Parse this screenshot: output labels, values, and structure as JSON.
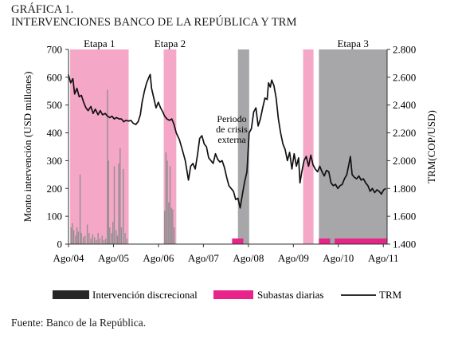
{
  "header": {
    "figure_number": "GRÁFICA 1.",
    "title": "INTERVENCIONES BANCO DE LA REPÚBLICA Y TRM"
  },
  "footer": {
    "source": "Fuente:  Banco de la República."
  },
  "colors": {
    "pink": "#f4a7c6",
    "magenta": "#e8238a",
    "gray": "#a7a7a9",
    "line": "#111111",
    "bars": "#8d8d8d"
  },
  "chart_data": {
    "type": "line",
    "title": "INTERVENCIONES BANCO DE LA REPÚBLICA Y TRM",
    "ylabel": "Monto intervención (USD millones)",
    "y2label": "TRM(COP/USD)",
    "ylim": [
      0,
      700
    ],
    "y2lim": [
      1400,
      2800
    ],
    "yticks": [
      0,
      100,
      200,
      300,
      400,
      500,
      600,
      700
    ],
    "y2ticks": [
      "1.400",
      "1.600",
      "1.800",
      "2.000",
      "2.200",
      "2.400",
      "2.600",
      "2.800"
    ],
    "xlim": [
      2004.583,
      2011.667
    ],
    "xticks": [
      {
        "label": "Ago/04",
        "x": 2004.583
      },
      {
        "label": "Ago/05",
        "x": 2005.583
      },
      {
        "label": "Ago/06",
        "x": 2006.583
      },
      {
        "label": "Ago/07",
        "x": 2007.583
      },
      {
        "label": "Ago/08",
        "x": 2008.583
      },
      {
        "label": "Ago/09",
        "x": 2009.583
      },
      {
        "label": "Ago/10",
        "x": 2010.583
      },
      {
        "label": "Ago/11",
        "x": 2011.583
      }
    ],
    "shaded_periods": [
      {
        "label": "Etapa 1",
        "start": 2004.62,
        "end": 2005.92,
        "type": "pink"
      },
      {
        "label": "Etapa 2",
        "start": 2006.7,
        "end": 2006.98,
        "type": "pink"
      },
      {
        "label": "",
        "start": 2008.35,
        "end": 2008.6,
        "type": "gray"
      },
      {
        "label": "",
        "start": 2009.8,
        "end": 2010.03,
        "type": "pink"
      },
      {
        "label": "Etapa 3",
        "start": 2010.15,
        "end": 2011.667,
        "type": "gray"
      }
    ],
    "annotation": "Periodo\nde crisis\nexterna",
    "daily_auctions": [
      {
        "start": 2008.22,
        "end": 2008.47,
        "value": 20
      },
      {
        "start": 2010.15,
        "end": 2010.4,
        "value": 20
      },
      {
        "start": 2010.5,
        "end": 2011.67,
        "value": 20
      }
    ],
    "discretionary": [
      {
        "x": 2004.64,
        "value": 60
      },
      {
        "x": 2004.67,
        "value": 75
      },
      {
        "x": 2004.7,
        "value": 50
      },
      {
        "x": 2004.74,
        "value": 30
      },
      {
        "x": 2004.77,
        "value": 60
      },
      {
        "x": 2004.8,
        "value": 45
      },
      {
        "x": 2004.84,
        "value": 250
      },
      {
        "x": 2004.87,
        "value": 40
      },
      {
        "x": 2004.91,
        "value": 25
      },
      {
        "x": 2004.95,
        "value": 30
      },
      {
        "x": 2005.0,
        "value": 70
      },
      {
        "x": 2005.04,
        "value": 40
      },
      {
        "x": 2005.08,
        "value": 20
      },
      {
        "x": 2005.12,
        "value": 35
      },
      {
        "x": 2005.16,
        "value": 25
      },
      {
        "x": 2005.2,
        "value": 15
      },
      {
        "x": 2005.24,
        "value": 40
      },
      {
        "x": 2005.28,
        "value": 20
      },
      {
        "x": 2005.33,
        "value": 30
      },
      {
        "x": 2005.37,
        "value": 15
      },
      {
        "x": 2005.41,
        "value": 20
      },
      {
        "x": 2005.45,
        "value": 555
      },
      {
        "x": 2005.47,
        "value": 300
      },
      {
        "x": 2005.5,
        "value": 60
      },
      {
        "x": 2005.54,
        "value": 40
      },
      {
        "x": 2005.57,
        "value": 80
      },
      {
        "x": 2005.6,
        "value": 280
      },
      {
        "x": 2005.64,
        "value": 50
      },
      {
        "x": 2005.67,
        "value": 30
      },
      {
        "x": 2005.7,
        "value": 290
      },
      {
        "x": 2005.73,
        "value": 345
      },
      {
        "x": 2005.76,
        "value": 60
      },
      {
        "x": 2005.8,
        "value": 270
      },
      {
        "x": 2005.84,
        "value": 40
      },
      {
        "x": 2005.88,
        "value": 20
      },
      {
        "x": 2006.72,
        "value": 120
      },
      {
        "x": 2006.75,
        "value": 330
      },
      {
        "x": 2006.78,
        "value": 300
      },
      {
        "x": 2006.81,
        "value": 150
      },
      {
        "x": 2006.84,
        "value": 280
      },
      {
        "x": 2006.87,
        "value": 130
      },
      {
        "x": 2006.9,
        "value": 125
      },
      {
        "x": 2006.93,
        "value": 60
      }
    ],
    "trm": [
      [
        2004.58,
        2620
      ],
      [
        2004.63,
        2560
      ],
      [
        2004.68,
        2590
      ],
      [
        2004.72,
        2480
      ],
      [
        2004.77,
        2520
      ],
      [
        2004.82,
        2460
      ],
      [
        2004.87,
        2470
      ],
      [
        2004.92,
        2420
      ],
      [
        2004.97,
        2380
      ],
      [
        2005.02,
        2360
      ],
      [
        2005.08,
        2390
      ],
      [
        2005.13,
        2340
      ],
      [
        2005.18,
        2370
      ],
      [
        2005.24,
        2330
      ],
      [
        2005.29,
        2360
      ],
      [
        2005.34,
        2330
      ],
      [
        2005.4,
        2340
      ],
      [
        2005.45,
        2320
      ],
      [
        2005.5,
        2310
      ],
      [
        2005.55,
        2320
      ],
      [
        2005.6,
        2300
      ],
      [
        2005.65,
        2310
      ],
      [
        2005.71,
        2300
      ],
      [
        2005.76,
        2300
      ],
      [
        2005.81,
        2280
      ],
      [
        2005.86,
        2290
      ],
      [
        2005.92,
        2285
      ],
      [
        2005.97,
        2290
      ],
      [
        2006.02,
        2270
      ],
      [
        2006.08,
        2260
      ],
      [
        2006.13,
        2280
      ],
      [
        2006.18,
        2330
      ],
      [
        2006.22,
        2420
      ],
      [
        2006.27,
        2500
      ],
      [
        2006.32,
        2560
      ],
      [
        2006.37,
        2600
      ],
      [
        2006.4,
        2620
      ],
      [
        2006.43,
        2520
      ],
      [
        2006.48,
        2450
      ],
      [
        2006.53,
        2380
      ],
      [
        2006.58,
        2420
      ],
      [
        2006.63,
        2380
      ],
      [
        2006.68,
        2350
      ],
      [
        2006.72,
        2320
      ],
      [
        2006.77,
        2300
      ],
      [
        2006.83,
        2290
      ],
      [
        2006.88,
        2300
      ],
      [
        2006.93,
        2260
      ],
      [
        2006.98,
        2200
      ],
      [
        2007.05,
        2150
      ],
      [
        2007.12,
        2070
      ],
      [
        2007.18,
        2000
      ],
      [
        2007.25,
        1860
      ],
      [
        2007.3,
        1960
      ],
      [
        2007.35,
        1980
      ],
      [
        2007.4,
        1940
      ],
      [
        2007.45,
        2040
      ],
      [
        2007.5,
        2160
      ],
      [
        2007.55,
        2180
      ],
      [
        2007.6,
        2120
      ],
      [
        2007.65,
        2100
      ],
      [
        2007.7,
        2020
      ],
      [
        2007.75,
        2000
      ],
      [
        2007.8,
        1980
      ],
      [
        2007.85,
        2050
      ],
      [
        2007.9,
        2010
      ],
      [
        2007.95,
        1990
      ],
      [
        2008.0,
        2000
      ],
      [
        2008.05,
        1950
      ],
      [
        2008.1,
        1880
      ],
      [
        2008.15,
        1820
      ],
      [
        2008.2,
        1800
      ],
      [
        2008.25,
        1780
      ],
      [
        2008.3,
        1720
      ],
      [
        2008.35,
        1730
      ],
      [
        2008.4,
        1660
      ],
      [
        2008.45,
        1760
      ],
      [
        2008.5,
        1850
      ],
      [
        2008.55,
        1920
      ],
      [
        2008.6,
        2200
      ],
      [
        2008.65,
        2230
      ],
      [
        2008.7,
        2350
      ],
      [
        2008.75,
        2380
      ],
      [
        2008.8,
        2250
      ],
      [
        2008.85,
        2300
      ],
      [
        2008.9,
        2380
      ],
      [
        2008.95,
        2450
      ],
      [
        2009.0,
        2440
      ],
      [
        2009.03,
        2560
      ],
      [
        2009.07,
        2530
      ],
      [
        2009.1,
        2580
      ],
      [
        2009.15,
        2540
      ],
      [
        2009.2,
        2450
      ],
      [
        2009.25,
        2300
      ],
      [
        2009.3,
        2200
      ],
      [
        2009.35,
        2120
      ],
      [
        2009.4,
        2080
      ],
      [
        2009.45,
        2000
      ],
      [
        2009.5,
        2060
      ],
      [
        2009.55,
        1940
      ],
      [
        2009.6,
        2050
      ],
      [
        2009.65,
        1960
      ],
      [
        2009.7,
        2020
      ],
      [
        2009.73,
        1840
      ],
      [
        2009.77,
        1920
      ],
      [
        2009.82,
        2000
      ],
      [
        2009.87,
        2030
      ],
      [
        2009.92,
        1960
      ],
      [
        2009.97,
        2040
      ],
      [
        2010.02,
        1970
      ],
      [
        2010.07,
        1940
      ],
      [
        2010.12,
        1920
      ],
      [
        2010.17,
        1960
      ],
      [
        2010.22,
        1920
      ],
      [
        2010.27,
        1890
      ],
      [
        2010.32,
        1930
      ],
      [
        2010.37,
        1920
      ],
      [
        2010.42,
        1840
      ],
      [
        2010.47,
        1820
      ],
      [
        2010.52,
        1830
      ],
      [
        2010.57,
        1800
      ],
      [
        2010.62,
        1820
      ],
      [
        2010.67,
        1830
      ],
      [
        2010.72,
        1870
      ],
      [
        2010.77,
        1900
      ],
      [
        2010.82,
        1980
      ],
      [
        2010.85,
        2030
      ],
      [
        2010.89,
        1900
      ],
      [
        2010.94,
        1880
      ],
      [
        2010.99,
        1870
      ],
      [
        2011.04,
        1890
      ],
      [
        2011.09,
        1860
      ],
      [
        2011.14,
        1870
      ],
      [
        2011.19,
        1840
      ],
      [
        2011.24,
        1820
      ],
      [
        2011.29,
        1780
      ],
      [
        2011.34,
        1800
      ],
      [
        2011.39,
        1770
      ],
      [
        2011.44,
        1790
      ],
      [
        2011.49,
        1780
      ],
      [
        2011.54,
        1760
      ],
      [
        2011.59,
        1790
      ],
      [
        2011.64,
        1800
      ]
    ],
    "legend": [
      {
        "key": "discrecional",
        "label": "Intervención discrecional"
      },
      {
        "key": "subastas",
        "label": "Subastas diarias"
      },
      {
        "key": "trm",
        "label": "TRM"
      }
    ],
    "legend_position": "bottom",
    "grid": false
  }
}
